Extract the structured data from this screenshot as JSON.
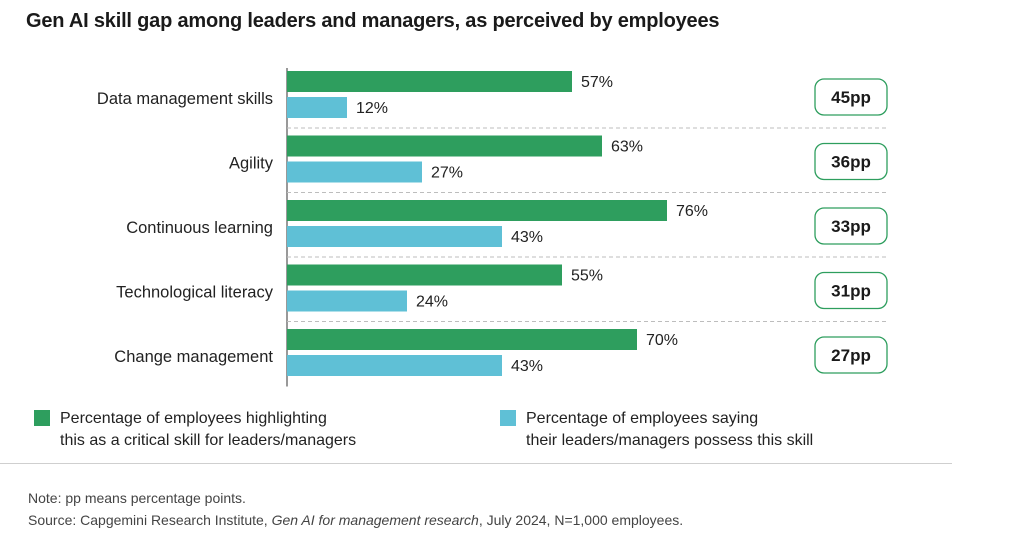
{
  "chart_data": {
    "type": "bar",
    "orientation": "horizontal",
    "title": "Gen AI skill gap among leaders and managers, as perceived by employees",
    "categories": [
      "Data management skills",
      "Agility",
      "Continuous learning",
      "Technological literacy",
      "Change management"
    ],
    "series": [
      {
        "name": "Percentage of employees highlighting this as a critical skill for leaders/managers",
        "color": "#2e9e5e",
        "values": [
          57,
          63,
          76,
          55,
          70
        ],
        "labels": [
          "57%",
          "63%",
          "76%",
          "55%",
          "70%"
        ]
      },
      {
        "name": "Percentage of employees saying their leaders/managers possess this skill",
        "color": "#5fc0d6",
        "values": [
          12,
          27,
          43,
          24,
          43
        ],
        "labels": [
          "12%",
          "27%",
          "43%",
          "24%",
          "43%"
        ]
      }
    ],
    "gaps": [
      "45pp",
      "36pp",
      "33pp",
      "31pp",
      "27pp"
    ],
    "xlim": [
      0,
      100
    ],
    "xlabel": "",
    "ylabel": "",
    "legend_position": "bottom"
  },
  "legend": {
    "series1_line1": "Percentage of employees highlighting",
    "series1_line2": "this as a critical skill for leaders/managers",
    "series2_line1": "Percentage of employees saying",
    "series2_line2": "their leaders/managers possess this skill"
  },
  "footer": {
    "note": "Note: pp means percentage points.",
    "source_prefix": "Source: Capgemini Research Institute, ",
    "source_title": "Gen AI for management research",
    "source_suffix": ", July 2024, N=1,000 employees."
  },
  "colors": {
    "gap_border": "#2e9e5e",
    "divider": "#bdbdbd"
  }
}
